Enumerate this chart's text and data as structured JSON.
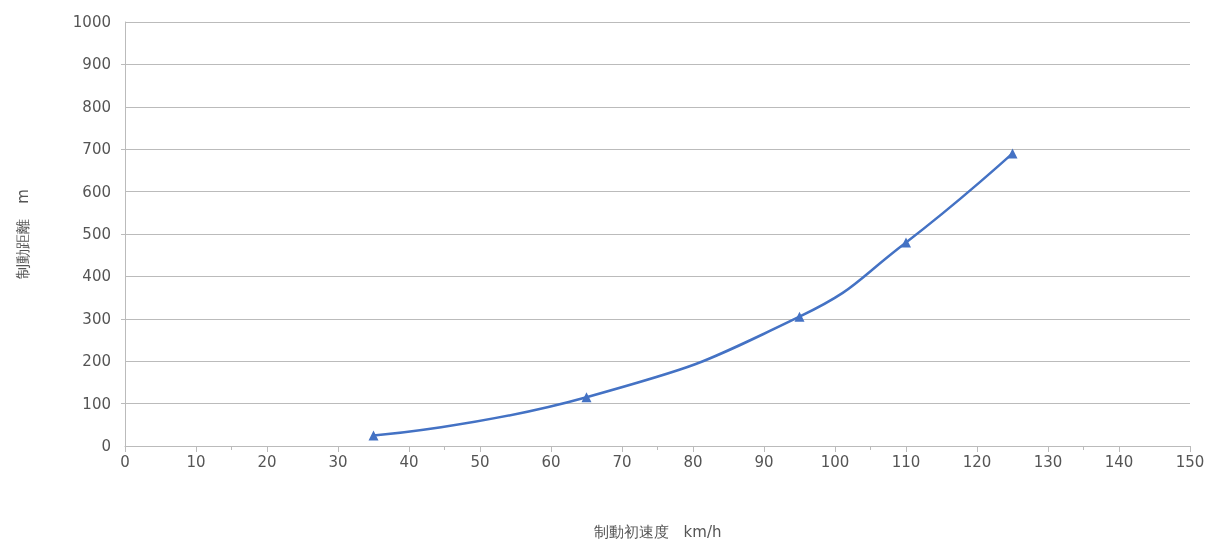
{
  "chart_data": {
    "type": "line",
    "xlabel": "制動初速度　km/h",
    "ylabel": "制動距離　m",
    "x": [
      35,
      65,
      95,
      110,
      125
    ],
    "series": [
      {
        "color": "#4472c4",
        "values": [
          25,
          115,
          305,
          480,
          690
        ]
      }
    ],
    "xlim": [
      0,
      150
    ],
    "xticks": [
      0,
      10,
      20,
      30,
      40,
      50,
      60,
      70,
      80,
      90,
      100,
      110,
      120,
      130,
      140,
      150
    ],
    "ylim": [
      0,
      1000
    ],
    "yticks": [
      0,
      100,
      200,
      300,
      400,
      500,
      600,
      700,
      800,
      900,
      1000
    ],
    "grid": "y",
    "marker": "triangle",
    "line_style": "solid"
  }
}
